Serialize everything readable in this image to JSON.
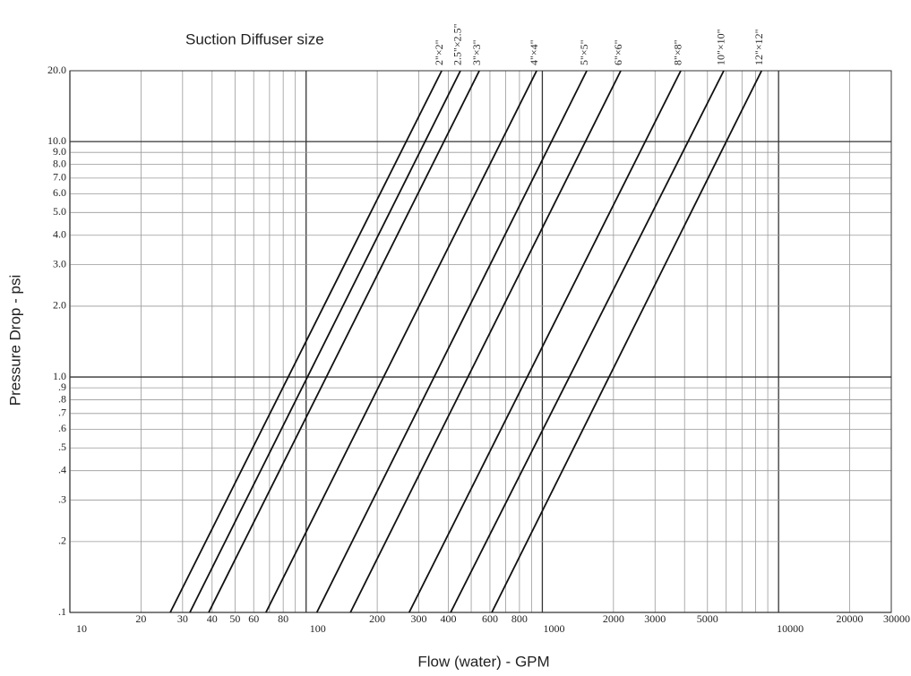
{
  "chart_data": {
    "type": "line",
    "title": "Suction Diffuser  size",
    "x_label": "Flow (water) - GPM",
    "y_label": "Pressure Drop - psi",
    "log_x": true,
    "log_y": true,
    "grid": true,
    "color": "#111",
    "xlim": [
      10,
      30000
    ],
    "ylim": [
      0.1,
      20
    ],
    "xticks": [
      10,
      20,
      30,
      40,
      50,
      60,
      80,
      100,
      200,
      300,
      400,
      600,
      800,
      1000,
      2000,
      3000,
      5000,
      10000,
      20000,
      30000
    ],
    "xgrid": [
      10,
      20,
      30,
      40,
      50,
      60,
      70,
      80,
      90,
      100,
      200,
      300,
      400,
      500,
      600,
      700,
      800,
      900,
      1000,
      2000,
      3000,
      4000,
      5000,
      6000,
      7000,
      8000,
      9000,
      10000,
      20000,
      30000
    ],
    "yticks": [
      {
        "value": 20,
        "label": "20.0"
      },
      {
        "value": 10,
        "label": "10.0"
      },
      {
        "value": 9,
        "label": "9.0"
      },
      {
        "value": 8,
        "label": "8.0"
      },
      {
        "value": 7,
        "label": "7.0"
      },
      {
        "value": 6,
        "label": "6.0"
      },
      {
        "value": 5,
        "label": "5.0"
      },
      {
        "value": 4,
        "label": "4.0"
      },
      {
        "value": 3,
        "label": "3.0"
      },
      {
        "value": 2,
        "label": "2.0"
      },
      {
        "value": 1,
        "label": "1.0"
      },
      {
        "value": 0.9,
        "label": ".9"
      },
      {
        "value": 0.8,
        "label": ".8"
      },
      {
        "value": 0.7,
        "label": ".7"
      },
      {
        "value": 0.6,
        "label": ".6"
      },
      {
        "value": 0.5,
        "label": ".5"
      },
      {
        "value": 0.4,
        "label": ".4"
      },
      {
        "value": 0.3,
        "label": ".3"
      },
      {
        "value": 0.2,
        "label": ".2"
      },
      {
        "value": 0.1,
        "label": ".1"
      }
    ],
    "series": [
      {
        "name": "2\"×2\"",
        "x": [
          26.6,
          375
        ],
        "values": [
          0.1,
          20
        ]
      },
      {
        "name": "2.5\"×2.5\"",
        "x": [
          32.2,
          450
        ],
        "values": [
          0.1,
          20
        ]
      },
      {
        "name": "3\"×3\"",
        "x": [
          38.7,
          541
        ],
        "values": [
          0.1,
          20
        ]
      },
      {
        "name": "4\"×4\"",
        "x": [
          67.6,
          946
        ],
        "values": [
          0.1,
          20
        ]
      },
      {
        "name": "5\"×5\"",
        "x": [
          111,
          1542
        ],
        "values": [
          0.1,
          20
        ]
      },
      {
        "name": "6\"×6\"",
        "x": [
          154,
          2148
        ],
        "values": [
          0.1,
          20
        ]
      },
      {
        "name": "8\"×8\"",
        "x": [
          273,
          3855
        ],
        "values": [
          0.1,
          20
        ]
      },
      {
        "name": "10\"×10\"",
        "x": [
          409,
          5862
        ],
        "values": [
          0.1,
          20
        ]
      },
      {
        "name": "12\"×12\"",
        "x": [
          611,
          8473
        ],
        "values": [
          0.1,
          20
        ]
      }
    ]
  }
}
